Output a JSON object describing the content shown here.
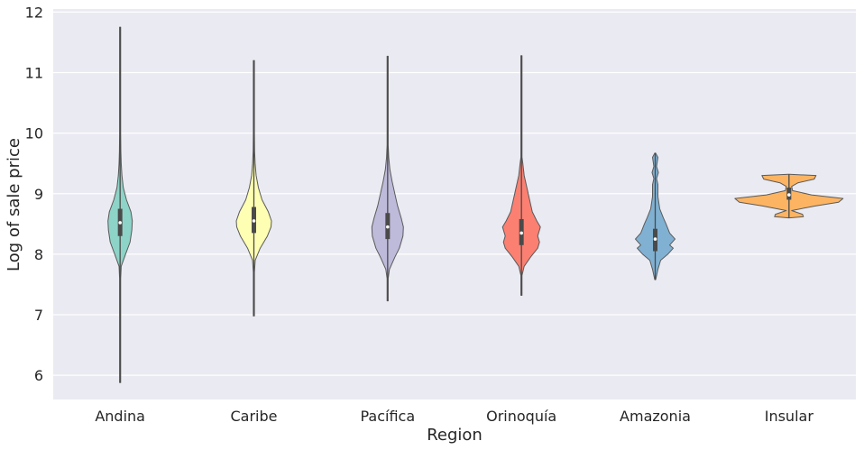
{
  "chart_data": {
    "type": "violin",
    "title": "",
    "xlabel": "Region",
    "ylabel": "Log of sale price",
    "ylim": [
      5.6,
      12.05
    ],
    "yticks": [
      "6",
      "7",
      "8",
      "9",
      "10",
      "11",
      "12"
    ],
    "grid": true,
    "categories": [
      "Andina",
      "Caribe",
      "Pacífica",
      "Orinoquía",
      "Amazonia",
      "Insular"
    ],
    "series": [
      {
        "name": "Andina",
        "color": "#8dd3c7",
        "min": 5.88,
        "max": 11.75,
        "q1": 8.3,
        "median": 8.52,
        "q3": 8.75,
        "profile": [
          [
            5.88,
            0.6
          ],
          [
            7.6,
            0.6
          ],
          [
            7.8,
            1.2
          ],
          [
            8.0,
            6
          ],
          [
            8.2,
            11
          ],
          [
            8.4,
            13
          ],
          [
            8.55,
            13.5
          ],
          [
            8.7,
            12
          ],
          [
            8.9,
            7
          ],
          [
            9.1,
            3.5
          ],
          [
            9.3,
            2
          ],
          [
            9.5,
            1.2
          ],
          [
            9.7,
            0.8
          ],
          [
            10.0,
            0.6
          ],
          [
            11.75,
            0.6
          ]
        ]
      },
      {
        "name": "Caribe",
        "color": "#ffffb3",
        "min": 6.98,
        "max": 11.2,
        "q1": 8.35,
        "median": 8.55,
        "q3": 8.78,
        "profile": [
          [
            6.98,
            0.6
          ],
          [
            7.7,
            0.6
          ],
          [
            7.9,
            1.5
          ],
          [
            8.1,
            7
          ],
          [
            8.3,
            15
          ],
          [
            8.45,
            19
          ],
          [
            8.55,
            19.5
          ],
          [
            8.7,
            16
          ],
          [
            8.9,
            9
          ],
          [
            9.1,
            5
          ],
          [
            9.3,
            2.5
          ],
          [
            9.5,
            1.4
          ],
          [
            9.7,
            0.8
          ],
          [
            10.0,
            0.6
          ],
          [
            11.2,
            0.6
          ]
        ]
      },
      {
        "name": "Pacífica",
        "color": "#bebada",
        "min": 7.23,
        "max": 11.27,
        "q1": 8.25,
        "median": 8.45,
        "q3": 8.68,
        "profile": [
          [
            7.23,
            0.6
          ],
          [
            7.6,
            0.6
          ],
          [
            7.75,
            2
          ],
          [
            7.95,
            8
          ],
          [
            8.1,
            13
          ],
          [
            8.3,
            17
          ],
          [
            8.45,
            17.5
          ],
          [
            8.6,
            15
          ],
          [
            8.8,
            11
          ],
          [
            9.0,
            8
          ],
          [
            9.2,
            5
          ],
          [
            9.4,
            2.5
          ],
          [
            9.6,
            1.2
          ],
          [
            9.8,
            0.6
          ],
          [
            11.27,
            0.6
          ]
        ]
      },
      {
        "name": "Orinoquía",
        "color": "#fb8072",
        "min": 7.32,
        "max": 11.28,
        "q1": 8.15,
        "median": 8.35,
        "q3": 8.58,
        "profile": [
          [
            7.32,
            0.6
          ],
          [
            7.65,
            0.6
          ],
          [
            7.8,
            3
          ],
          [
            7.95,
            10
          ],
          [
            8.1,
            18
          ],
          [
            8.2,
            20
          ],
          [
            8.3,
            18
          ],
          [
            8.45,
            21
          ],
          [
            8.55,
            17
          ],
          [
            8.7,
            12
          ],
          [
            8.9,
            9
          ],
          [
            9.1,
            6
          ],
          [
            9.3,
            3
          ],
          [
            9.5,
            1.5
          ],
          [
            9.6,
            0.6
          ],
          [
            11.28,
            0.6
          ]
        ]
      },
      {
        "name": "Amazonia",
        "color": "#80b1d3",
        "min": 7.58,
        "max": 9.67,
        "q1": 8.05,
        "median": 8.25,
        "q3": 8.42,
        "profile": [
          [
            7.58,
            0.5
          ],
          [
            7.75,
            3
          ],
          [
            7.9,
            6
          ],
          [
            8.0,
            14
          ],
          [
            8.1,
            20
          ],
          [
            8.15,
            16
          ],
          [
            8.25,
            22
          ],
          [
            8.35,
            16
          ],
          [
            8.5,
            12
          ],
          [
            8.6,
            9
          ],
          [
            8.75,
            5
          ],
          [
            8.95,
            3
          ],
          [
            9.15,
            3
          ],
          [
            9.25,
            1.5
          ],
          [
            9.35,
            3.5
          ],
          [
            9.45,
            1.5
          ],
          [
            9.6,
            3
          ],
          [
            9.67,
            0.5
          ]
        ]
      },
      {
        "name": "Insular",
        "color": "#fdb462",
        "min": 8.6,
        "max": 9.32,
        "q1": 8.9,
        "median": 8.98,
        "q3": 9.1,
        "profile": [
          [
            8.6,
            0.5
          ],
          [
            8.62,
            16
          ],
          [
            8.66,
            15
          ],
          [
            8.72,
            3
          ],
          [
            8.8,
            30
          ],
          [
            8.86,
            55
          ],
          [
            8.92,
            60
          ],
          [
            8.98,
            25
          ],
          [
            9.05,
            4
          ],
          [
            9.12,
            3
          ],
          [
            9.18,
            10
          ],
          [
            9.24,
            28
          ],
          [
            9.3,
            30
          ],
          [
            9.32,
            0.5
          ]
        ]
      }
    ]
  }
}
